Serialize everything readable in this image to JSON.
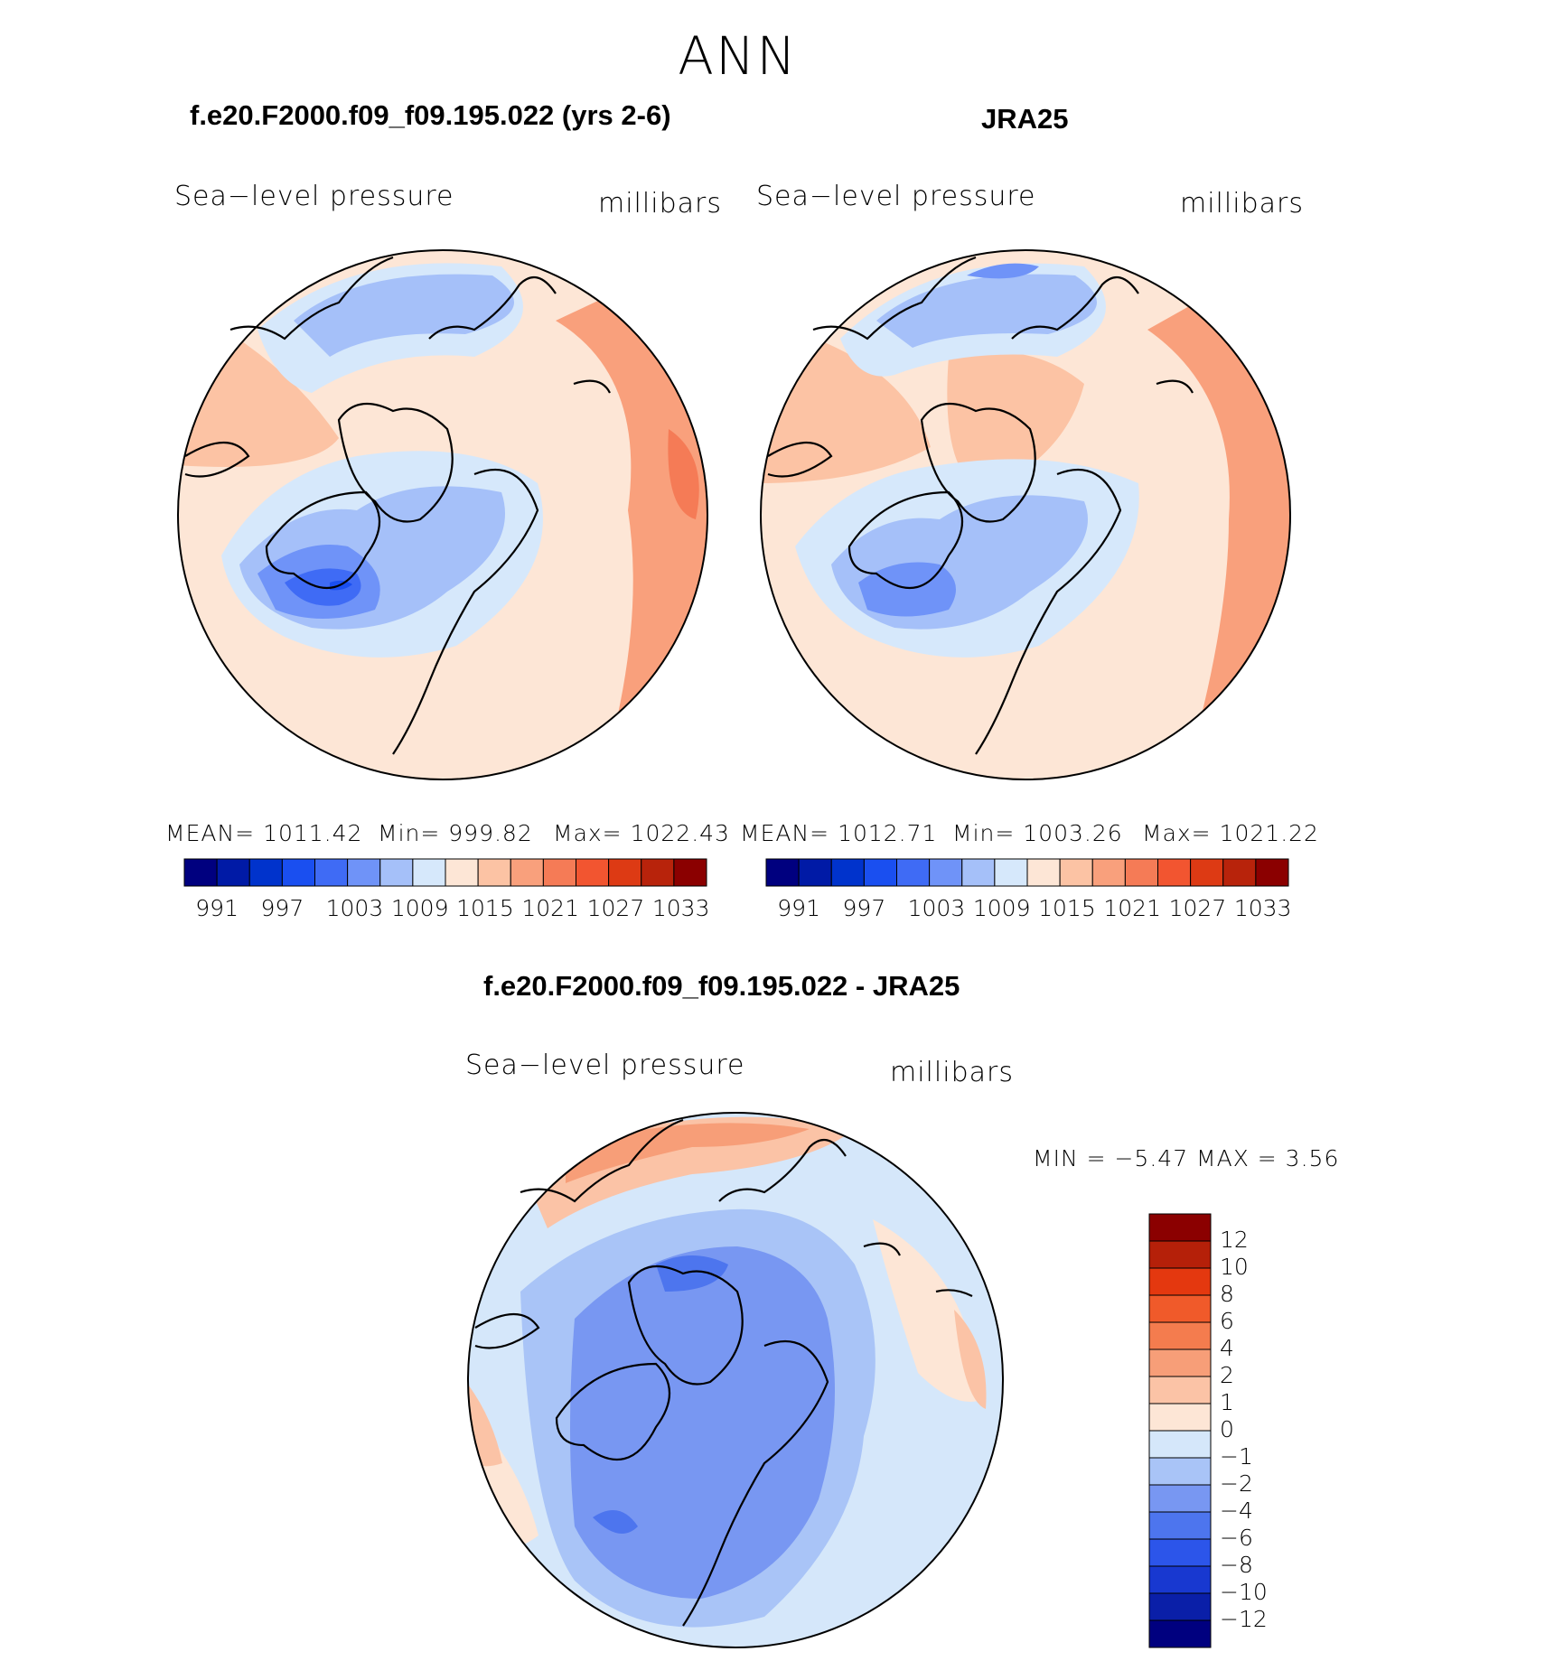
{
  "figure": {
    "title": "ANN"
  },
  "panels": [
    {
      "title": "f.e20.F2000.f09_f09.195.022 (yrs 2-6)",
      "variable": "Sea−level pressure",
      "units": "millibars",
      "stats": {
        "mean": "MEAN=  1011.42",
        "min": "Min=  999.82",
        "max": "Max=  1022.43"
      }
    },
    {
      "title": "JRA25",
      "variable": "Sea−level pressure",
      "units": "millibars",
      "stats": {
        "mean": "MEAN=  1012.71",
        "min": "Min=  1003.26",
        "max": "Max=  1021.22"
      }
    },
    {
      "title": "f.e20.F2000.f09_f09.195.022 - JRA25",
      "variable": "Sea−level pressure",
      "units": "millibars",
      "stats": {
        "minmax": "MIN  =    −5.47  MAX  =      3.56"
      }
    }
  ],
  "abs_colorbar": {
    "colors": [
      "#00007f",
      "#001aa6",
      "#0033cc",
      "#1a4ff0",
      "#3f6bf5",
      "#6f93f8",
      "#a5c0f9",
      "#d6e8fb",
      "#fde6d6",
      "#fcc3a4",
      "#f9a07c",
      "#f57b56",
      "#f25530",
      "#dd3a14",
      "#b8230b",
      "#8b0000"
    ],
    "tick_labels": [
      "991",
      "997",
      "1003",
      "1009",
      "1015",
      "1021",
      "1027",
      "1033"
    ]
  },
  "diff_colorbar": {
    "colors": [
      "#00007f",
      "#0a1fa8",
      "#1838d0",
      "#2c55ea",
      "#4d75ee",
      "#7897f2",
      "#a9c4f7",
      "#d5e7fa",
      "#fde6d6",
      "#fbc3a6",
      "#f79e78",
      "#f47c4e",
      "#f05a2a",
      "#e4380f",
      "#b52009",
      "#8b0000"
    ],
    "tick_labels": [
      "12",
      "10",
      "8",
      "6",
      "4",
      "2",
      "1",
      "0",
      "−1",
      "−2",
      "−4",
      "−6",
      "−8",
      "−10",
      "−12"
    ]
  },
  "colors": {
    "land_outline": "#000000",
    "cold_strong": "#3a64e8",
    "cold": "#a5c0f9",
    "cold_light": "#d6e8fb",
    "neutral_warm": "#fde6d6",
    "warm": "#f9a07c",
    "warm_strong": "#f57b56"
  }
}
